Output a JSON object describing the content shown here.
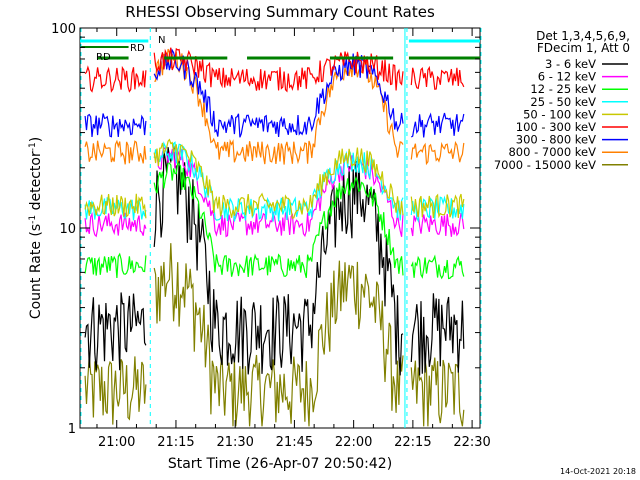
{
  "chart_data": {
    "type": "line",
    "title": "RHESSI Observing Summary Count Rates",
    "xlabel": "Start Time (26-Apr-07 20:50:42)",
    "ylabel": "Count Rate (s",
    "ylabel_sup": "-1",
    "ylabel_tail": " detector",
    "ylabel_close": ")",
    "yscale": "log",
    "ylim": [
      1,
      100
    ],
    "y_ticks": [
      "1",
      "10",
      "100"
    ],
    "x_ticks": [
      "21:00",
      "21:15",
      "21:30",
      "21:45",
      "22:00",
      "22:15",
      "22:30"
    ],
    "x_tick_minutes": [
      60,
      75,
      90,
      105,
      120,
      135,
      150
    ],
    "xlim_minutes": [
      50.7,
      152
    ],
    "info_lines": [
      "Det 1,3,4,5,6,9,",
      "FDecim 1, Att 0"
    ],
    "footer_date": "14-Oct-2021 20:18",
    "annotations": [
      "RD",
      "RD",
      "N"
    ],
    "day_intervals": [
      [
        55,
        63
      ],
      [
        72,
        88
      ],
      [
        93,
        109
      ],
      [
        114,
        130
      ],
      [
        134,
        152
      ]
    ],
    "eclipse_boundaries": [
      50.7,
      68.5,
      133.5,
      152
    ],
    "saa_lines": [
      68.5,
      133.5
    ],
    "series": [
      {
        "name": "3 - 6 keV",
        "color": "#000000",
        "night": 3.3,
        "peak1": 18,
        "peak2": 16
      },
      {
        "name": "6 - 12 keV",
        "color": "#ff00ff",
        "night": 10.5,
        "peak1": 23,
        "peak2": 21
      },
      {
        "name": "12 - 25 keV",
        "color": "#00ff00",
        "night": 6.5,
        "peak1": 19,
        "peak2": 17
      },
      {
        "name": "25 - 50 keV",
        "color": "#00ffff",
        "night": 12.5,
        "peak1": 24,
        "peak2": 22
      },
      {
        "name": "50 - 100 keV",
        "color": "#c8c800",
        "night": 13,
        "peak1": 25,
        "peak2": 23
      },
      {
        "name": "100 - 300 keV",
        "color": "#ff0000",
        "night": 56,
        "peak1": 70,
        "peak2": 68
      },
      {
        "name": "300 - 800 keV",
        "color": "#0000ff",
        "night": 33,
        "peak1": 68,
        "peak2": 66
      },
      {
        "name": "800 - 7000 keV",
        "color": "#ff8000",
        "night": 24,
        "peak1": 70,
        "peak2": 66
      },
      {
        "name": "7000 - 15000 keV",
        "color": "#808000",
        "night": 1.6,
        "peak1": 6,
        "peak2": 5.5
      }
    ]
  }
}
